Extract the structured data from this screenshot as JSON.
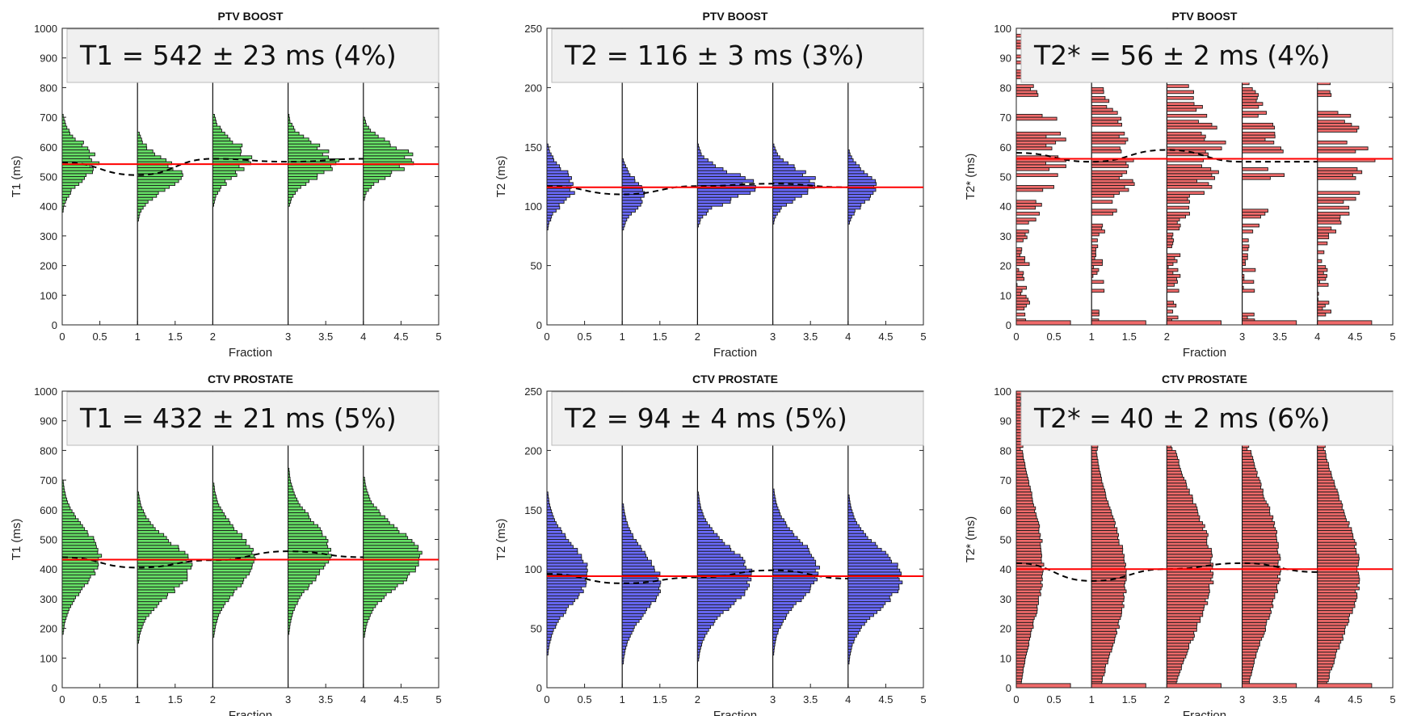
{
  "figure": {
    "background": "#ffffff"
  },
  "style": {
    "bar_stroke": "#1a1a1a",
    "mean_line_color": "#ff0000",
    "trend_line_color": "#000000",
    "box_fill": "#f0f0f0",
    "box_stroke": "#bbbbbb"
  },
  "chart_data": [
    {
      "type": "bar",
      "orientation": "horizontal",
      "title": "PTV BOOST",
      "annotation": "T1 = 542 ± 23 ms (4%)",
      "xlabel": "Fraction",
      "ylabel": "T1 (ms)",
      "xlim": [
        0,
        5
      ],
      "ylim": [
        0,
        1000
      ],
      "xticks": [
        0,
        0.5,
        1,
        1.5,
        2,
        3,
        3.5,
        4,
        4.5,
        5
      ],
      "yticks": [
        0,
        100,
        200,
        300,
        400,
        500,
        600,
        700,
        800,
        900,
        1000
      ],
      "bar_color": "#66e066",
      "bin_width": 10,
      "mean": 542,
      "offsets": [
        0,
        1,
        2,
        3,
        4
      ],
      "fraction_means": [
        548,
        505,
        560,
        550,
        560
      ],
      "spreads": [
        60,
        55,
        58,
        55,
        50
      ],
      "peak_widths": [
        0.45,
        0.55,
        0.45,
        0.6,
        0.6
      ],
      "seed": 11,
      "noise": 0.35,
      "sparse": false,
      "tails": false
    },
    {
      "type": "bar",
      "orientation": "horizontal",
      "title": "PTV BOOST",
      "annotation": "T2 = 116 ± 3 ms (3%)",
      "xlabel": "Fraction",
      "ylabel": "T2 (ms)",
      "xlim": [
        0,
        5
      ],
      "ylim": [
        0,
        250
      ],
      "xticks": [
        0,
        0.5,
        1,
        1.5,
        2,
        3,
        3.5,
        4,
        4.5,
        5
      ],
      "yticks": [
        0,
        50,
        100,
        150,
        200,
        250
      ],
      "bar_color": "#6b6bff",
      "bin_width": 2.5,
      "mean": 116,
      "offsets": [
        0,
        1,
        2,
        3,
        4
      ],
      "fraction_means": [
        117,
        110,
        117,
        119,
        116
      ],
      "spreads": [
        14,
        12,
        12,
        12,
        12
      ],
      "peak_widths": [
        0.35,
        0.3,
        0.7,
        0.55,
        0.4
      ],
      "seed": 23,
      "noise": 0.3,
      "sparse": false,
      "tails": false
    },
    {
      "type": "bar",
      "orientation": "horizontal",
      "title": "PTV BOOST",
      "annotation": "T2* = 56 ± 2 ms (4%)",
      "xlabel": "Fraction",
      "ylabel": "T2* (ms)",
      "xlim": [
        0,
        5
      ],
      "ylim": [
        0,
        100
      ],
      "xticks": [
        0,
        0.5,
        1,
        1.5,
        2,
        3,
        3.5,
        4,
        4.5,
        5
      ],
      "yticks": [
        0,
        10,
        20,
        30,
        40,
        50,
        60,
        70,
        80,
        90,
        100
      ],
      "bar_color": "#f06a6a",
      "bin_width": 1,
      "mean": 56,
      "offsets": [
        0,
        1,
        2,
        3,
        4
      ],
      "fraction_means": [
        58,
        55,
        59,
        55,
        55
      ],
      "spreads": [
        16,
        15,
        15,
        16,
        16
      ],
      "peak_widths": [
        0.55,
        0.5,
        0.65,
        0.45,
        0.6
      ],
      "seed": 37,
      "noise": 0.6,
      "sparse": true,
      "tails": false
    },
    {
      "type": "bar",
      "orientation": "horizontal",
      "title": "CTV PROSTATE",
      "annotation": "T1 = 432 ± 21 ms (5%)",
      "xlabel": "Fraction",
      "ylabel": "T1 (ms)",
      "xlim": [
        0,
        5
      ],
      "ylim": [
        0,
        1000
      ],
      "xticks": [
        0,
        0.5,
        1,
        1.5,
        2,
        3,
        3.5,
        4,
        4.5,
        5
      ],
      "yticks": [
        0,
        100,
        200,
        300,
        400,
        500,
        600,
        700,
        800,
        900,
        1000
      ],
      "bar_color": "#66e066",
      "bin_width": 10,
      "mean": 432,
      "offsets": [
        0,
        1,
        2,
        3,
        4
      ],
      "fraction_means": [
        440,
        405,
        430,
        460,
        440
      ],
      "spreads": [
        95,
        90,
        95,
        100,
        95
      ],
      "peak_widths": [
        0.5,
        0.7,
        0.55,
        0.55,
        0.75
      ],
      "seed": 51,
      "noise": 0.12,
      "sparse": false,
      "tails": false
    },
    {
      "type": "bar",
      "orientation": "horizontal",
      "title": "CTV PROSTATE",
      "annotation": "T2 = 94 ± 4 ms (5%)",
      "xlabel": "Fraction",
      "ylabel": "T2 (ms)",
      "xlim": [
        0,
        5
      ],
      "ylim": [
        0,
        250
      ],
      "xticks": [
        0,
        0.5,
        1,
        1.5,
        2,
        3,
        3.5,
        4,
        4.5,
        5
      ],
      "yticks": [
        0,
        50,
        100,
        150,
        200,
        250
      ],
      "bar_color": "#6b6bff",
      "bin_width": 2.5,
      "mean": 94,
      "offsets": [
        0,
        1,
        2,
        3,
        4
      ],
      "fraction_means": [
        96,
        88,
        93,
        99,
        92
      ],
      "spreads": [
        25,
        25,
        25,
        25,
        25
      ],
      "peak_widths": [
        0.55,
        0.5,
        0.7,
        0.6,
        0.7
      ],
      "seed": 67,
      "noise": 0.12,
      "sparse": false,
      "tails": false
    },
    {
      "type": "bar",
      "orientation": "horizontal",
      "title": "CTV PROSTATE",
      "annotation": "T2* = 40 ± 2 ms (6%)",
      "xlabel": "Fraction",
      "ylabel": "T2* (ms)",
      "xlim": [
        0,
        5
      ],
      "ylim": [
        0,
        100
      ],
      "xticks": [
        0,
        0.5,
        1,
        1.5,
        2,
        3,
        3.5,
        4,
        4.5,
        5
      ],
      "yticks": [
        0,
        10,
        20,
        30,
        40,
        50,
        60,
        70,
        80,
        90,
        100
      ],
      "bar_color": "#f06a6a",
      "bin_width": 1,
      "mean": 40,
      "offsets": [
        0,
        1,
        2,
        3,
        4
      ],
      "fraction_means": [
        42,
        36,
        40,
        42,
        39
      ],
      "spreads": [
        22,
        22,
        22,
        22,
        22
      ],
      "peak_widths": [
        0.35,
        0.45,
        0.6,
        0.5,
        0.55
      ],
      "seed": 83,
      "noise": 0.1,
      "sparse": false,
      "tails": true
    }
  ]
}
